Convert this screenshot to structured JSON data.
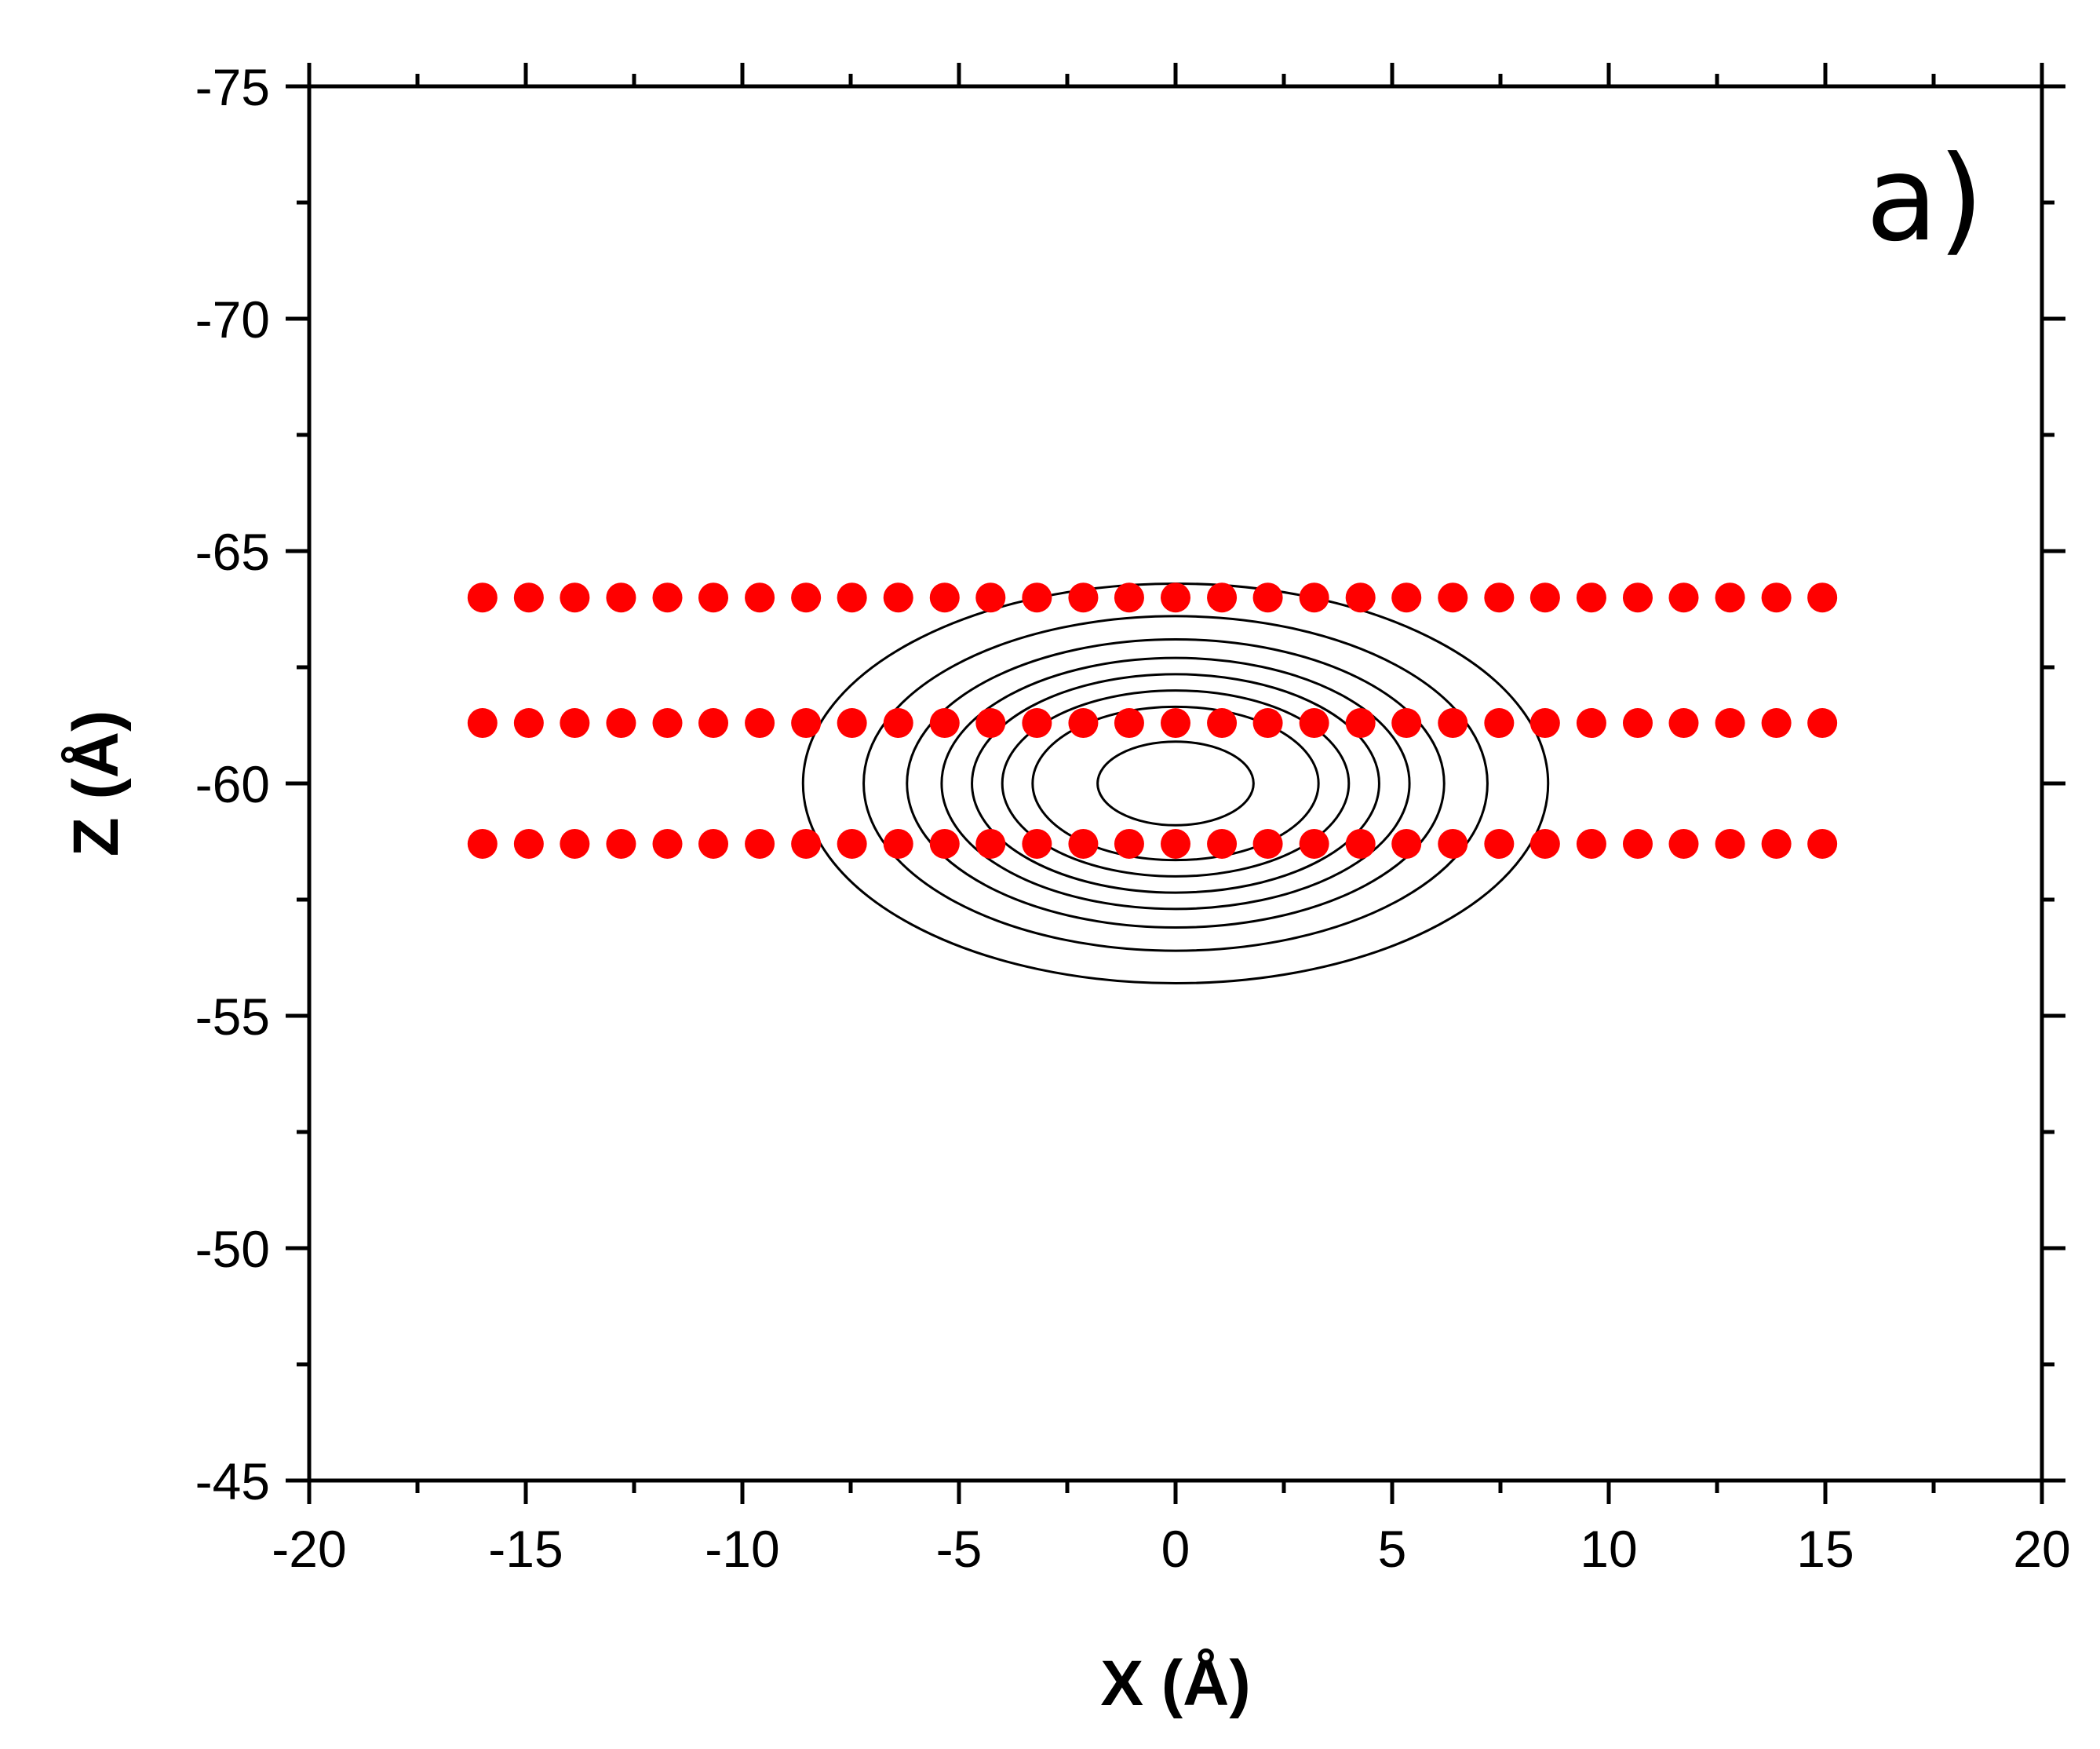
{
  "chart_data": {
    "type": "scatter",
    "panel_label": "a)",
    "xlabel": "X (Å)",
    "ylabel": "Z (Å)",
    "xlim": [
      -20,
      20
    ],
    "ylim": [
      -75,
      -45
    ],
    "y_inverted": true,
    "xticks": [
      -20,
      -15,
      -10,
      -5,
      0,
      5,
      10,
      15,
      20
    ],
    "yticks": [
      -75,
      -70,
      -65,
      -60,
      -55,
      -50,
      -45
    ],
    "grid": false,
    "colors": {
      "points": "#ff0000",
      "contours": "#000000",
      "axes": "#000000"
    },
    "series": [
      {
        "marker": "filled-circle",
        "rows_z": [
          -64.0,
          -61.3,
          -58.7
        ],
        "x": [
          -16.0,
          -14.93,
          -13.87,
          -12.8,
          -11.73,
          -10.67,
          -9.6,
          -8.53,
          -7.47,
          -6.4,
          -5.33,
          -4.27,
          -3.2,
          -2.13,
          -1.07,
          0.0,
          1.07,
          2.13,
          3.2,
          4.27,
          5.33,
          6.4,
          7.47,
          8.53,
          9.6,
          10.67,
          11.73,
          12.8,
          13.87,
          14.93
        ]
      }
    ],
    "contours": {
      "center": [
        0,
        -60
      ],
      "semi_axes_x": [
        8.6,
        7.2,
        6.2,
        5.4,
        4.7,
        4.0,
        3.3,
        1.8
      ],
      "semi_axes_z": [
        4.3,
        3.6,
        3.1,
        2.7,
        2.35,
        2.0,
        1.65,
        0.9
      ]
    }
  }
}
